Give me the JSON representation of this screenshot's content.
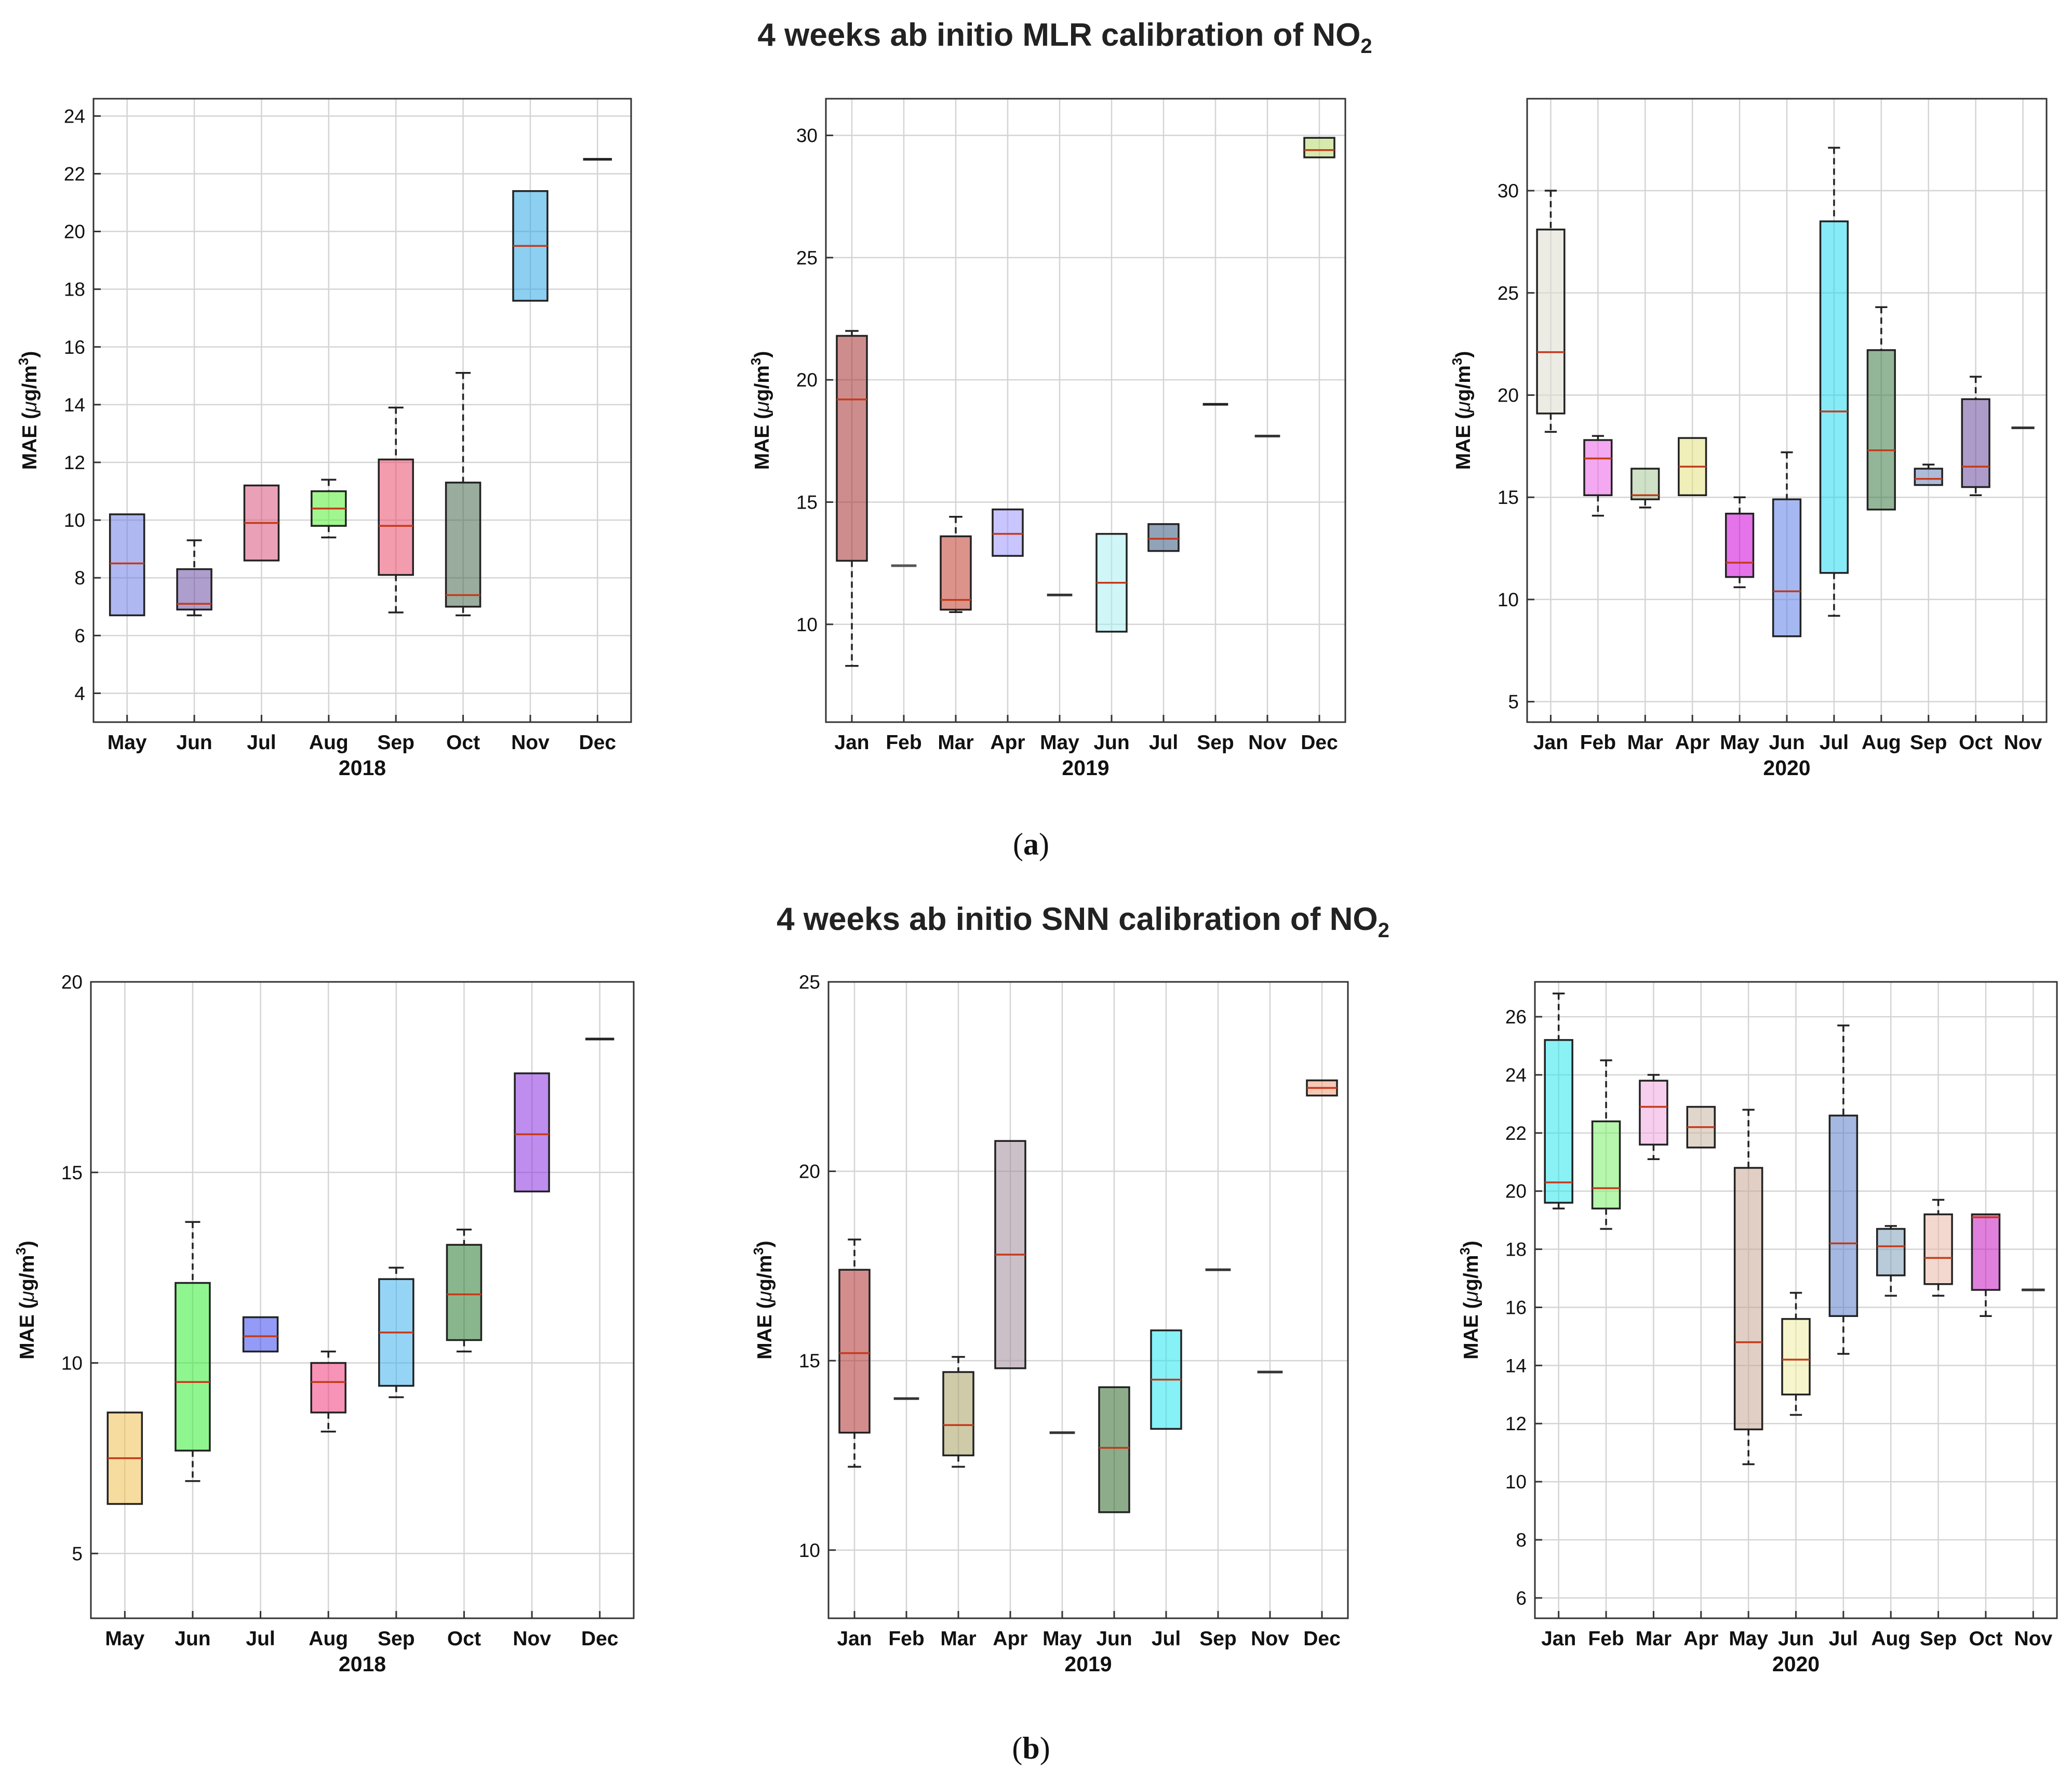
{
  "figure": {
    "rows": [
      {
        "title": {
          "text": "4 weeks ab initio MLR calibration of NO",
          "subscript": "2"
        },
        "caption": {
          "open": "(",
          "label": "a",
          "close": ")"
        }
      },
      {
        "title": {
          "text": "4 weeks ab initio SNN calibration of NO",
          "subscript": "2"
        },
        "caption": {
          "open": "(",
          "label": "b",
          "close": ")"
        }
      }
    ]
  },
  "chart_data": [
    {
      "type": "box",
      "row": 0,
      "col": 0,
      "xlabel": "2018",
      "ylabel": {
        "prefix": "MAE (",
        "mu": "μ",
        "unit": "g/m",
        "sup": "3",
        "suffix": ")"
      },
      "ylim": [
        3,
        24.6
      ],
      "yticks": [
        4,
        6,
        8,
        10,
        12,
        14,
        16,
        18,
        20,
        22,
        24
      ],
      "grid": true,
      "categories": [
        "May",
        "Jun",
        "Jul",
        "Aug",
        "Sep",
        "Oct",
        "Nov",
        "Dec"
      ],
      "boxes": [
        {
          "label": "May",
          "min": 6.7,
          "q1": 6.7,
          "median": 8.5,
          "q3": 10.2,
          "max": 10.2,
          "color": "#6f7de6"
        },
        {
          "label": "Jun",
          "min": 6.7,
          "q1": 6.9,
          "median": 7.1,
          "q3": 8.3,
          "max": 9.3,
          "color": "#6a4fa5"
        },
        {
          "label": "Jul",
          "min": 8.6,
          "q1": 8.6,
          "median": 9.9,
          "q3": 11.2,
          "max": 11.2,
          "color": "#d9537c"
        },
        {
          "label": "Aug",
          "min": 9.4,
          "q1": 9.8,
          "median": 10.4,
          "q3": 11.0,
          "max": 11.4,
          "color": "#55ee33"
        },
        {
          "label": "Sep",
          "min": 6.8,
          "q1": 8.1,
          "median": 9.8,
          "q3": 12.1,
          "max": 13.9,
          "color": "#ea4a6c"
        },
        {
          "label": "Oct",
          "min": 6.7,
          "q1": 7.0,
          "median": 7.4,
          "q3": 11.3,
          "max": 15.1,
          "color": "#46684f"
        },
        {
          "label": "Nov",
          "min": 17.6,
          "q1": 17.6,
          "median": 19.5,
          "q3": 21.4,
          "max": 21.4,
          "color": "#2ea8e6"
        },
        {
          "label": "Dec",
          "min": 22.5,
          "q1": 22.5,
          "median": 22.5,
          "q3": 22.5,
          "max": 22.5,
          "color": "#222222"
        }
      ]
    },
    {
      "type": "box",
      "row": 0,
      "col": 1,
      "xlabel": "2019",
      "ylabel": {
        "prefix": "MAE (",
        "mu": "μ",
        "unit": "g/m",
        "sup": "3",
        "suffix": ")"
      },
      "ylim": [
        6,
        31.5
      ],
      "yticks": [
        10,
        15,
        20,
        25,
        30
      ],
      "grid": true,
      "categories": [
        "Jan",
        "Feb",
        "Mar",
        "Apr",
        "May",
        "Jun",
        "Jul",
        "Sep",
        "Nov",
        "Dec"
      ],
      "boxes": [
        {
          "label": "Jan",
          "min": 8.3,
          "q1": 12.6,
          "median": 19.2,
          "q3": 21.8,
          "max": 22.0,
          "color": "#a53030"
        },
        {
          "label": "Feb",
          "min": 12.4,
          "q1": 12.4,
          "median": 12.4,
          "q3": 12.4,
          "max": 12.4,
          "color": "#555555"
        },
        {
          "label": "Mar",
          "min": 10.5,
          "q1": 10.6,
          "median": 11.0,
          "q3": 13.6,
          "max": 14.4,
          "color": "#c03a2a"
        },
        {
          "label": "Apr",
          "min": 12.8,
          "q1": 12.8,
          "median": 13.7,
          "q3": 14.7,
          "max": 14.7,
          "color": "#9c95ff"
        },
        {
          "label": "May",
          "min": 11.2,
          "q1": 11.2,
          "median": 11.2,
          "q3": 11.2,
          "max": 11.2,
          "color": "#333333"
        },
        {
          "label": "Jun",
          "min": 9.7,
          "q1": 9.7,
          "median": 11.7,
          "q3": 13.7,
          "max": 13.7,
          "color": "#aaeef0"
        },
        {
          "label": "Jul",
          "min": 13.0,
          "q1": 13.0,
          "median": 13.5,
          "q3": 14.1,
          "max": 14.1,
          "color": "#36587f"
        },
        {
          "label": "Sep",
          "min": 19.0,
          "q1": 19.0,
          "median": 19.0,
          "q3": 19.0,
          "max": 19.0,
          "color": "#222222"
        },
        {
          "label": "Nov",
          "min": 17.7,
          "q1": 17.7,
          "median": 17.7,
          "q3": 17.7,
          "max": 17.7,
          "color": "#333333"
        },
        {
          "label": "Dec",
          "min": 29.1,
          "q1": 29.1,
          "median": 29.4,
          "q3": 29.9,
          "max": 29.9,
          "color": "#b7d96c"
        }
      ]
    },
    {
      "type": "box",
      "row": 0,
      "col": 2,
      "xlabel": "2020",
      "ylabel": {
        "prefix": "MAE (",
        "mu": "μ",
        "unit": "g/m",
        "sup": "3",
        "suffix": ")"
      },
      "ylim": [
        4,
        34.5
      ],
      "yticks": [
        5,
        10,
        15,
        20,
        25,
        30
      ],
      "grid": true,
      "categories": [
        "Jan",
        "Feb",
        "Mar",
        "Apr",
        "May",
        "Jun",
        "Jul",
        "Aug",
        "Sep",
        "Oct",
        "Nov"
      ],
      "boxes": [
        {
          "label": "Jan",
          "min": 18.2,
          "q1": 19.1,
          "median": 22.1,
          "q3": 28.1,
          "max": 30.0,
          "color": "#dcdcd0"
        },
        {
          "label": "Feb",
          "min": 14.1,
          "q1": 15.1,
          "median": 16.9,
          "q3": 17.8,
          "max": 18.0,
          "color": "#ea60e6"
        },
        {
          "label": "Mar",
          "min": 14.5,
          "q1": 14.9,
          "median": 15.1,
          "q3": 16.4,
          "max": 16.4,
          "color": "#a8c898"
        },
        {
          "label": "Apr",
          "min": 15.1,
          "q1": 15.1,
          "median": 16.5,
          "q3": 17.9,
          "max": 17.9,
          "color": "#e4e080"
        },
        {
          "label": "May",
          "min": 10.6,
          "q1": 11.1,
          "median": 11.8,
          "q3": 14.2,
          "max": 15.0,
          "color": "#d000d8"
        },
        {
          "label": "Jun",
          "min": 8.2,
          "q1": 8.2,
          "median": 10.4,
          "q3": 14.9,
          "max": 17.2,
          "color": "#5b7de8"
        },
        {
          "label": "Jul",
          "min": 9.2,
          "q1": 11.3,
          "median": 19.2,
          "q3": 28.5,
          "max": 32.1,
          "color": "#24d8f0"
        },
        {
          "label": "Aug",
          "min": 14.4,
          "q1": 14.4,
          "median": 17.3,
          "q3": 22.2,
          "max": 24.3,
          "color": "#3a7a44"
        },
        {
          "label": "Sep",
          "min": 15.6,
          "q1": 15.6,
          "median": 15.9,
          "q3": 16.4,
          "max": 16.6,
          "color": "#6b84b8"
        },
        {
          "label": "Oct",
          "min": 15.1,
          "q1": 15.5,
          "median": 16.5,
          "q3": 19.8,
          "max": 20.9,
          "color": "#6a4a9c"
        },
        {
          "label": "Nov",
          "min": 18.4,
          "q1": 18.4,
          "median": 18.4,
          "q3": 18.4,
          "max": 18.4,
          "color": "#333333"
        }
      ]
    },
    {
      "type": "box",
      "row": 1,
      "col": 0,
      "xlabel": "2018",
      "ylabel": {
        "prefix": "MAE (",
        "mu": "μ",
        "unit": "g/m",
        "sup": "3",
        "suffix": ")"
      },
      "ylim": [
        3.3,
        20
      ],
      "yticks": [
        5,
        10,
        15,
        20
      ],
      "grid": true,
      "categories": [
        "May",
        "Jun",
        "Jul",
        "Aug",
        "Sep",
        "Oct",
        "Nov",
        "Dec"
      ],
      "boxes": [
        {
          "label": "May",
          "min": 6.3,
          "q1": 6.3,
          "median": 7.5,
          "q3": 8.7,
          "max": 8.7,
          "color": "#f0c050"
        },
        {
          "label": "Jun",
          "min": 6.9,
          "q1": 7.7,
          "median": 9.5,
          "q3": 12.1,
          "max": 13.7,
          "color": "#33ee33"
        },
        {
          "label": "Jul",
          "min": 10.3,
          "q1": 10.3,
          "median": 10.7,
          "q3": 11.2,
          "max": 11.2,
          "color": "#3a48ee"
        },
        {
          "label": "Aug",
          "min": 8.2,
          "q1": 8.7,
          "median": 9.5,
          "q3": 10.0,
          "max": 10.3,
          "color": "#f03a7a"
        },
        {
          "label": "Sep",
          "min": 9.1,
          "q1": 9.4,
          "median": 10.8,
          "q3": 12.2,
          "max": 12.5,
          "color": "#3fb0ec"
        },
        {
          "label": "Oct",
          "min": 10.3,
          "q1": 10.6,
          "median": 11.8,
          "q3": 13.1,
          "max": 13.5,
          "color": "#2a7a30"
        },
        {
          "label": "Nov",
          "min": 14.5,
          "q1": 14.5,
          "median": 16.0,
          "q3": 17.6,
          "max": 17.6,
          "color": "#8a30e0"
        },
        {
          "label": "Dec",
          "min": 18.5,
          "q1": 18.5,
          "median": 18.5,
          "q3": 18.5,
          "max": 18.5,
          "color": "#222222"
        }
      ]
    },
    {
      "type": "box",
      "row": 1,
      "col": 1,
      "xlabel": "2019",
      "ylabel": {
        "prefix": "MAE (",
        "mu": "μ",
        "unit": "g/m",
        "sup": "3",
        "suffix": ")"
      },
      "ylim": [
        8.2,
        25
      ],
      "yticks": [
        10,
        15,
        20,
        25
      ],
      "grid": true,
      "categories": [
        "Jan",
        "Feb",
        "Mar",
        "Apr",
        "May",
        "Jun",
        "Jul",
        "Sep",
        "Nov",
        "Dec"
      ],
      "boxes": [
        {
          "label": "Jan",
          "min": 12.2,
          "q1": 13.1,
          "median": 15.2,
          "q3": 17.4,
          "max": 18.2,
          "color": "#b03030"
        },
        {
          "label": "Feb",
          "min": 14.0,
          "q1": 14.0,
          "median": 14.0,
          "q3": 14.0,
          "max": 14.0,
          "color": "#333333"
        },
        {
          "label": "Mar",
          "min": 12.2,
          "q1": 12.5,
          "median": 13.3,
          "q3": 14.7,
          "max": 15.1,
          "color": "#a8a060"
        },
        {
          "label": "Apr",
          "min": 14.8,
          "q1": 14.8,
          "median": 17.8,
          "q3": 20.8,
          "max": 20.8,
          "color": "#a08a9a"
        },
        {
          "label": "May",
          "min": 13.1,
          "q1": 13.1,
          "median": 13.1,
          "q3": 13.1,
          "max": 13.1,
          "color": "#333333"
        },
        {
          "label": "Jun",
          "min": 11.0,
          "q1": 11.0,
          "median": 12.7,
          "q3": 14.3,
          "max": 14.3,
          "color": "#2f6a2a"
        },
        {
          "label": "Jul",
          "min": 13.2,
          "q1": 13.2,
          "median": 14.5,
          "q3": 15.8,
          "max": 15.8,
          "color": "#22e6f0"
        },
        {
          "label": "Sep",
          "min": 17.4,
          "q1": 17.4,
          "median": 17.4,
          "q3": 17.4,
          "max": 17.4,
          "color": "#333333"
        },
        {
          "label": "Nov",
          "min": 14.7,
          "q1": 14.7,
          "median": 14.7,
          "q3": 14.7,
          "max": 14.7,
          "color": "#333333"
        },
        {
          "label": "Dec",
          "min": 22.0,
          "q1": 22.0,
          "median": 22.2,
          "q3": 22.4,
          "max": 22.4,
          "color": "#f09a7a"
        }
      ]
    },
    {
      "type": "box",
      "row": 1,
      "col": 2,
      "xlabel": "2020",
      "ylabel": {
        "prefix": "MAE (",
        "mu": "μ",
        "unit": "g/m",
        "sup": "3",
        "suffix": ")"
      },
      "ylim": [
        5.3,
        27.2
      ],
      "yticks": [
        6,
        8,
        10,
        12,
        14,
        16,
        18,
        20,
        22,
        24,
        26
      ],
      "grid": true,
      "categories": [
        "Jan",
        "Feb",
        "Mar",
        "Apr",
        "May",
        "Jun",
        "Jul",
        "Aug",
        "Sep",
        "Oct",
        "Nov"
      ],
      "boxes": [
        {
          "label": "Jan",
          "min": 19.4,
          "q1": 19.6,
          "median": 20.3,
          "q3": 25.2,
          "max": 26.8,
          "color": "#2ae6ec"
        },
        {
          "label": "Feb",
          "min": 18.7,
          "q1": 19.4,
          "median": 20.1,
          "q3": 22.4,
          "max": 24.5,
          "color": "#7af06a"
        },
        {
          "label": "Mar",
          "min": 21.1,
          "q1": 21.6,
          "median": 22.9,
          "q3": 23.8,
          "max": 24.0,
          "color": "#f0a6e0"
        },
        {
          "label": "Apr",
          "min": 21.5,
          "q1": 21.5,
          "median": 22.2,
          "q3": 22.9,
          "max": 22.9,
          "color": "#c8b4a0"
        },
        {
          "label": "May",
          "min": 10.6,
          "q1": 11.8,
          "median": 14.8,
          "q3": 20.8,
          "max": 22.8,
          "color": "#c8a898"
        },
        {
          "label": "Jun",
          "min": 12.3,
          "q1": 13.0,
          "median": 14.2,
          "q3": 15.6,
          "max": 16.5,
          "color": "#f0eca0"
        },
        {
          "label": "Jul",
          "min": 14.4,
          "q1": 15.7,
          "median": 18.2,
          "q3": 22.6,
          "max": 25.7,
          "color": "#5a7ec8"
        },
        {
          "label": "Aug",
          "min": 16.4,
          "q1": 17.1,
          "median": 18.1,
          "q3": 18.7,
          "max": 18.8,
          "color": "#80a0b8"
        },
        {
          "label": "Sep",
          "min": 16.4,
          "q1": 16.8,
          "median": 17.7,
          "q3": 19.2,
          "max": 19.7,
          "color": "#e8b8a8"
        },
        {
          "label": "Oct",
          "min": 15.7,
          "q1": 16.6,
          "median": 19.1,
          "q3": 19.2,
          "max": 19.2,
          "color": "#c818c0"
        },
        {
          "label": "Nov",
          "min": 16.6,
          "q1": 16.6,
          "median": 16.6,
          "q3": 16.6,
          "max": 16.6,
          "color": "#333333"
        }
      ]
    }
  ]
}
